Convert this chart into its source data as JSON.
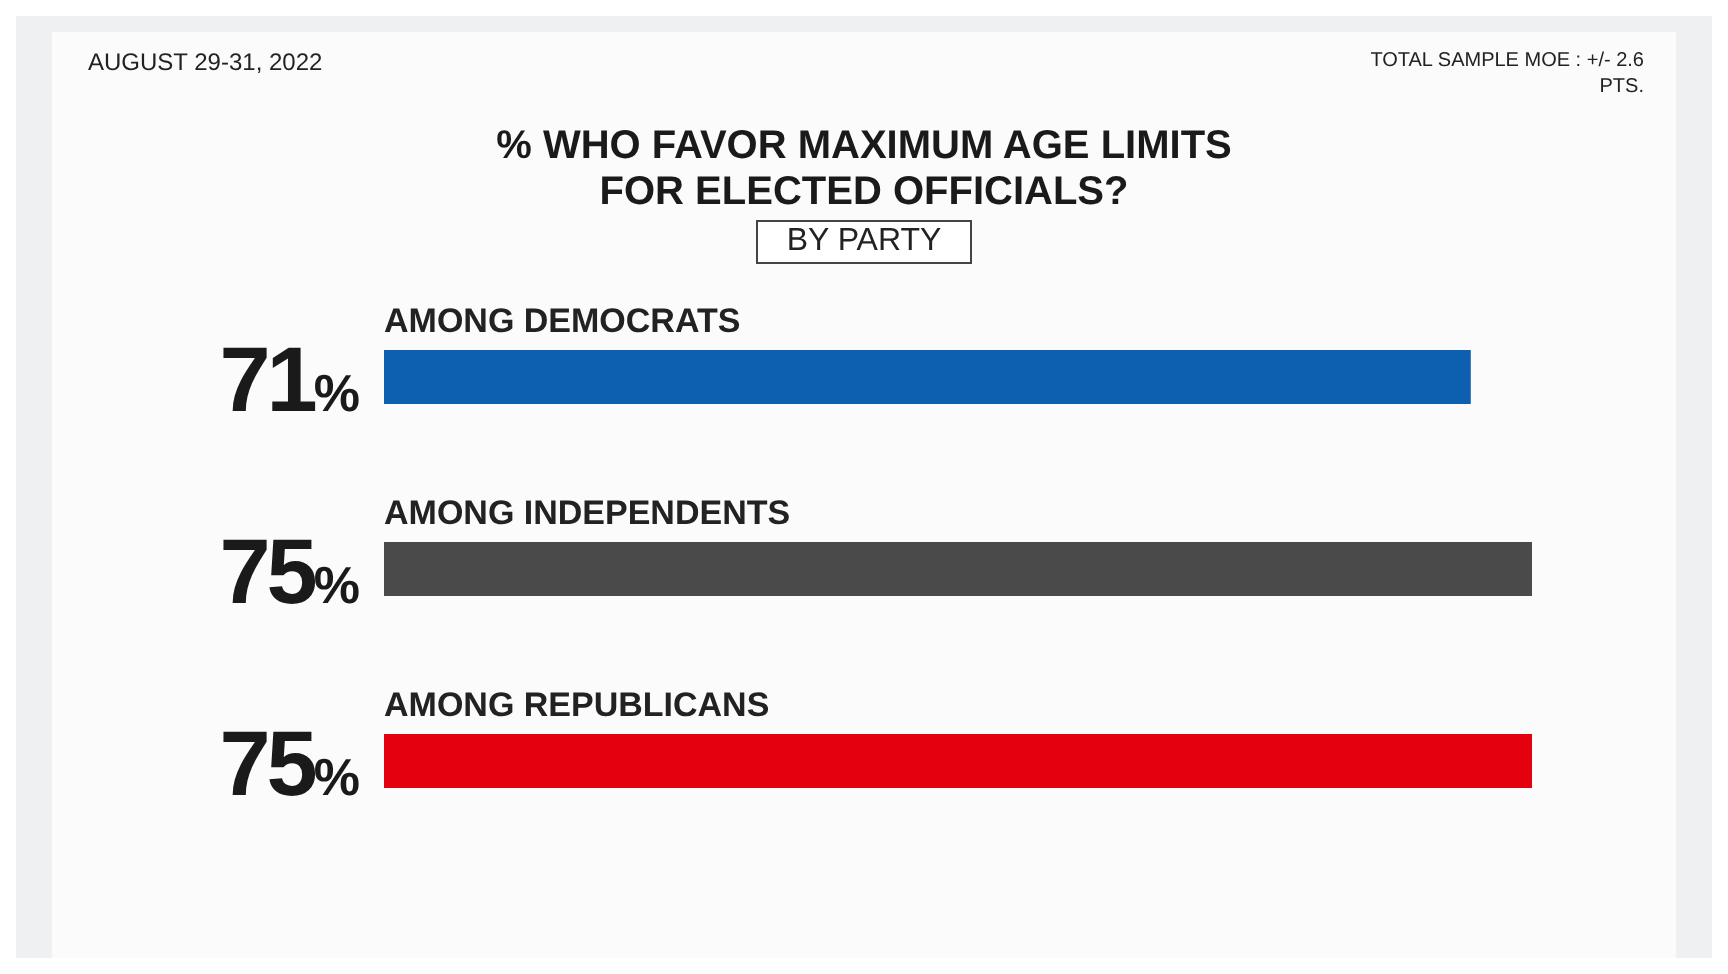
{
  "chart_data": {
    "type": "bar",
    "orientation": "horizontal",
    "title": "% WHO FAVOR MAXIMUM AGE LIMITS FOR ELECTED OFFICIALS?",
    "subtitle": "BY PARTY",
    "annotations": [
      "AUGUST 29-31, 2022",
      "TOTAL SAMPLE MOE : +/- 2.6 PTS."
    ],
    "categories": [
      "AMONG DEMOCRATS",
      "AMONG INDEPENDENTS",
      "AMONG REPUBLICANS"
    ],
    "values": [
      71,
      75,
      75
    ],
    "colors": [
      "#0d5fb0",
      "#4a4a4a",
      "#e3000f"
    ],
    "value_labels": [
      "71%",
      "75%",
      "75%"
    ]
  }
}
